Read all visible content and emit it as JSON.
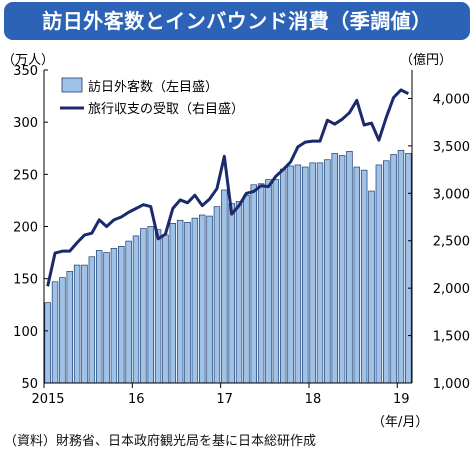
{
  "title": "訪日外客数とインバウンド消費（季調値）",
  "source": "（資料）財務省、日本政府観光局を基に日本総研作成",
  "chart_data": {
    "type": "bar+line",
    "left_unit": "（万人）",
    "right_unit": "（億円）",
    "x_unit": "（年/月）",
    "left_axis": {
      "min": 50,
      "max": 350,
      "ticks": [
        50,
        100,
        150,
        200,
        250,
        300,
        350
      ]
    },
    "right_axis": {
      "min": 1000,
      "max": 4300,
      "ticks": [
        "1,000",
        "1,500",
        "2,000",
        "2,500",
        "3,000",
        "3,500",
        "4,000"
      ],
      "tick_values": [
        1000,
        1500,
        2000,
        2500,
        3000,
        3500,
        4000
      ]
    },
    "x_tick_labels": [
      "2015",
      "16",
      "17",
      "18",
      "19"
    ],
    "legend_position": "top-left",
    "colors": {
      "bar_fill": "#9fc3e8",
      "bar_stroke": "#1f3b6e",
      "line": "#1b2a6b",
      "title_bg": "#2d63b7"
    },
    "series": [
      {
        "name": "訪日外客数（左目盛）",
        "type": "bar",
        "axis": "left",
        "values": [
          127,
          147,
          151,
          157,
          163,
          163,
          171,
          177,
          175,
          179,
          181,
          186,
          191,
          198,
          200,
          197,
          192,
          203,
          206,
          204,
          208,
          211,
          210,
          219,
          235,
          222,
          224,
          230,
          240,
          241,
          245,
          245,
          255,
          258,
          259,
          257,
          261,
          261,
          264,
          270,
          268,
          272,
          257,
          254,
          234,
          259,
          263,
          269,
          273,
          270
        ]
      },
      {
        "name": "旅行収支の受取（右目盛）",
        "type": "line",
        "axis": "right",
        "values": [
          2020,
          2370,
          2390,
          2390,
          2480,
          2560,
          2580,
          2720,
          2650,
          2720,
          2750,
          2800,
          2840,
          2880,
          2860,
          2520,
          2570,
          2840,
          2930,
          2900,
          2980,
          2870,
          2940,
          3050,
          3390,
          2780,
          2870,
          3000,
          3020,
          3080,
          3070,
          3180,
          3250,
          3330,
          3490,
          3540,
          3550,
          3550,
          3770,
          3730,
          3780,
          3850,
          3980,
          3720,
          3740,
          3560,
          3800,
          4010,
          4090,
          4050
        ]
      }
    ]
  }
}
